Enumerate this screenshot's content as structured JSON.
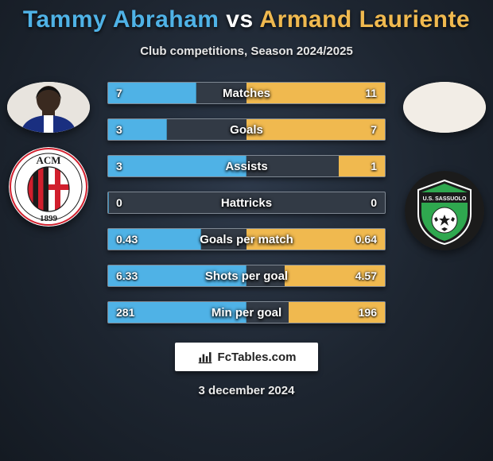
{
  "title_left": "Tammy Abraham",
  "title_vs": "vs",
  "title_right": "Armand Lauriente",
  "title_color_left": "#4fb2e6",
  "title_color_vs": "#ffffff",
  "title_color_right": "#f0b94f",
  "subtitle": "Club competitions, Season 2024/2025",
  "brand_text": "FcTables.com",
  "date_text": "3 december 2024",
  "bar": {
    "track_bg": "#323a45",
    "border": "#7f8893",
    "left_fill": "#4fb2e6",
    "right_fill": "#f0b94f",
    "max_side_pct": 50
  },
  "rows": [
    {
      "label": "Matches",
      "left": "7",
      "right": "11",
      "left_pct": 31.8,
      "right_pct": 50.0
    },
    {
      "label": "Goals",
      "left": "3",
      "right": "7",
      "left_pct": 21.4,
      "right_pct": 50.0
    },
    {
      "label": "Assists",
      "left": "3",
      "right": "1",
      "left_pct": 50.0,
      "right_pct": 16.7
    },
    {
      "label": "Hattricks",
      "left": "0",
      "right": "0",
      "left_pct": 0.0,
      "right_pct": 0.0
    },
    {
      "label": "Goals per match",
      "left": "0.43",
      "right": "0.64",
      "left_pct": 33.6,
      "right_pct": 50.0
    },
    {
      "label": "Shots per goal",
      "left": "6.33",
      "right": "4.57",
      "left_pct": 50.0,
      "right_pct": 36.1
    },
    {
      "label": "Min per goal",
      "left": "281",
      "right": "196",
      "left_pct": 50.0,
      "right_pct": 34.9
    }
  ],
  "crest_left": {
    "bg": "#ffffff",
    "stripes": [
      "#d11f2d",
      "#1b1b1b"
    ],
    "text": "ACM",
    "year": "1899"
  },
  "crest_right": {
    "bg": "#1b1b1b",
    "accent": "#2fa84f",
    "text": "U.S. SASSUOLO"
  }
}
